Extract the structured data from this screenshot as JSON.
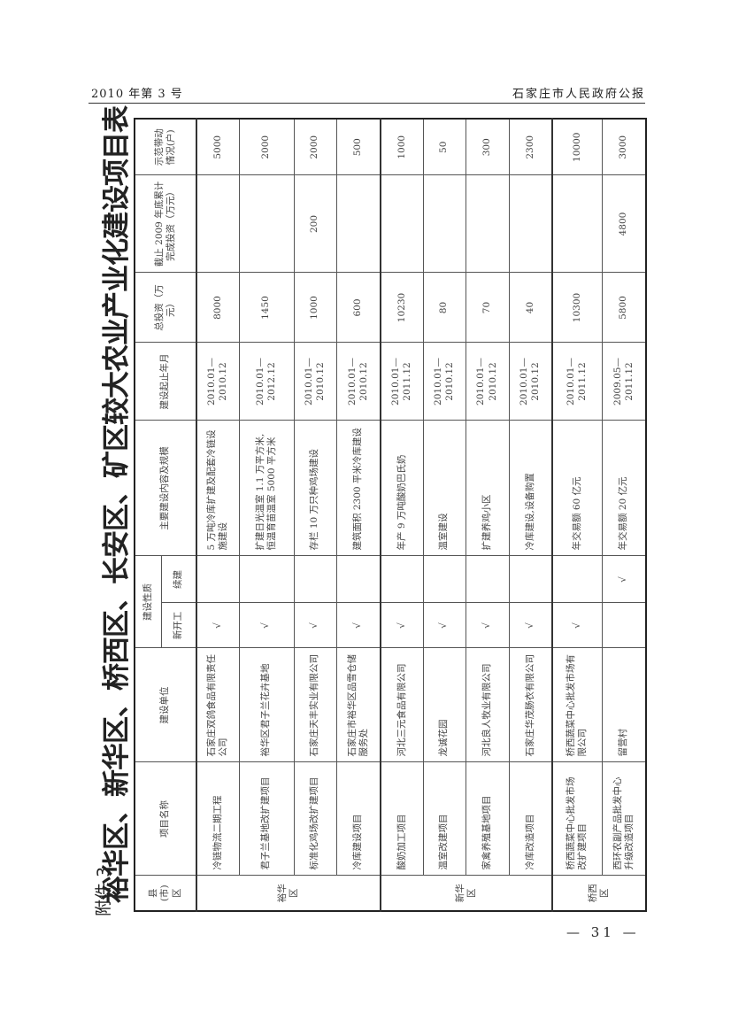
{
  "page_header": {
    "issue": "2010 年第 3 号",
    "publication": "石家庄市人民政府公报"
  },
  "annex_label": "附件 3",
  "title": "裕华区、新华区、桥西区、长安区、矿区较大农业产业化建设项目表",
  "table": {
    "headers": {
      "district": "县(市)区",
      "project": "项目名称",
      "unit": "建设单位",
      "nature": "建设性质",
      "new": "新开工",
      "continued": "续建",
      "content": "主要建设内容及规模",
      "period": "建设起止年月",
      "total": "总投资（万元）",
      "completed": "截止 2009 年底累计完成投资（万元）",
      "households": "示范带动情况(户)"
    },
    "districts": [
      {
        "name": "裕华区",
        "rows": 4
      },
      {
        "name": "新华区",
        "rows": 4
      },
      {
        "name": "桥西区",
        "rows": 2
      }
    ],
    "rows": [
      {
        "project": "冷链物流二期工程",
        "unit": "石家庄双鸽食品有限责任公司",
        "new": "√",
        "continued": "",
        "content": "5 万吨冷库扩建及配套冷链设施建设",
        "period": "2010.01—2010.12",
        "total": "8000",
        "completed": "",
        "households": "5000"
      },
      {
        "project": "君子兰基地改扩建项目",
        "unit": "裕华区君子兰花卉基地",
        "new": "√",
        "continued": "",
        "content": "扩建日光温室 1.1 万平方米,恒温育苗温室 5000 平方米",
        "period": "2010.01—2012.12",
        "total": "1450",
        "completed": "",
        "households": "2000"
      },
      {
        "project": "标准化鸡场改扩建项目",
        "unit": "石家庄天丰实业有限公司",
        "new": "√",
        "continued": "",
        "content": "存栏 10 万只种鸡场建设",
        "period": "2010.01—2010.12",
        "total": "1000",
        "completed": "200",
        "households": "2000"
      },
      {
        "project": "冷库建设项目",
        "unit": "石家庄市裕华区品雪仓储服务处",
        "new": "√",
        "continued": "",
        "content": "建筑面积 2300 平米冷库建设",
        "period": "2010.01—2010.12",
        "total": "600",
        "completed": "",
        "households": "500"
      },
      {
        "project": "酸奶加工项目",
        "unit": "河北三元食品有限公司",
        "new": "√",
        "continued": "",
        "content": "年产 9 万吨酸奶巴氏奶",
        "period": "2010.01—2011.12",
        "total": "10230",
        "completed": "",
        "households": "1000"
      },
      {
        "project": "温室改建项目",
        "unit": "龙诚花园",
        "new": "√",
        "continued": "",
        "content": "温室建设",
        "period": "2010.01—2010.12",
        "total": "80",
        "completed": "",
        "households": "50"
      },
      {
        "project": "家禽养殖基地项目",
        "unit": "河北良人牧业有限公司",
        "new": "√",
        "continued": "",
        "content": "扩建养鸡小区",
        "period": "2010.01—2010.12",
        "total": "70",
        "completed": "",
        "households": "300"
      },
      {
        "project": "冷库改造项目",
        "unit": "石家庄华茂肠衣有限公司",
        "new": "√",
        "continued": "",
        "content": "冷库建设,设备购置",
        "period": "2010.01—2010.12",
        "total": "40",
        "completed": "",
        "households": "2300"
      },
      {
        "project": "桥西蔬菜中心批发市场改扩建项目",
        "unit": "桥西蔬菜中心批发市场有限公司",
        "new": "√",
        "continued": "",
        "content": "年交易额 60 亿元",
        "period": "2010.01—2011.12",
        "total": "10300",
        "completed": "",
        "households": "10000"
      },
      {
        "project": "西环农副产品批发中心升级改造项目",
        "unit": "留营村",
        "new": "",
        "continued": "√",
        "content": "年交易额 20 亿元",
        "period": "2009.05—2011.12",
        "total": "5800",
        "completed": "4800",
        "households": "3000"
      }
    ]
  },
  "page_number": "— 31 —"
}
